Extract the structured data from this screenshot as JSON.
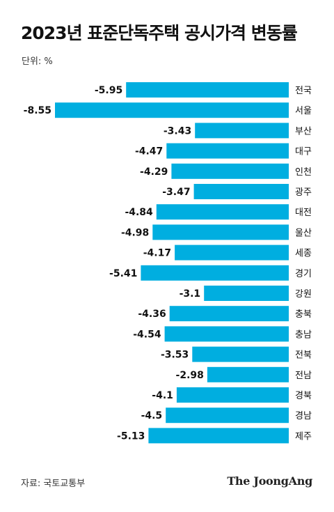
{
  "header": {
    "title": "2023년 표준단독주택 공시가격 변동률",
    "unit": "단위: %"
  },
  "footer": {
    "source": "자료: 국토교통부",
    "brand": "The JoongAng"
  },
  "colors": {
    "bar": "#00aee0",
    "text": "#111111"
  },
  "chart_data": {
    "type": "bar",
    "orientation": "horizontal",
    "title": "2023년 표준단독주택 공시가격 변동률",
    "categories": [
      "전국",
      "서울",
      "부산",
      "대구",
      "인천",
      "광주",
      "대전",
      "울산",
      "세종",
      "경기",
      "강원",
      "충북",
      "충남",
      "전북",
      "전남",
      "경북",
      "경남",
      "제주"
    ],
    "values": [
      -5.95,
      -8.55,
      -3.43,
      -4.47,
      -4.29,
      -3.47,
      -4.84,
      -4.98,
      -4.17,
      -5.41,
      -3.1,
      -4.36,
      -4.54,
      -3.53,
      -2.98,
      -4.1,
      -4.5,
      -5.13
    ],
    "value_labels": [
      "-5.95",
      "-8.55",
      "-3.43",
      "-4.47",
      "-4.29",
      "-3.47",
      "-4.84",
      "-4.98",
      "-4.17",
      "-5.41",
      "-3.1",
      "-4.36",
      "-4.54",
      "-3.53",
      "-2.98",
      "-4.1",
      "-4.5",
      "-5.13"
    ],
    "xlabel": "",
    "ylabel": "",
    "xlim": [
      -8.55,
      0
    ],
    "grid": false,
    "legend": "none"
  }
}
